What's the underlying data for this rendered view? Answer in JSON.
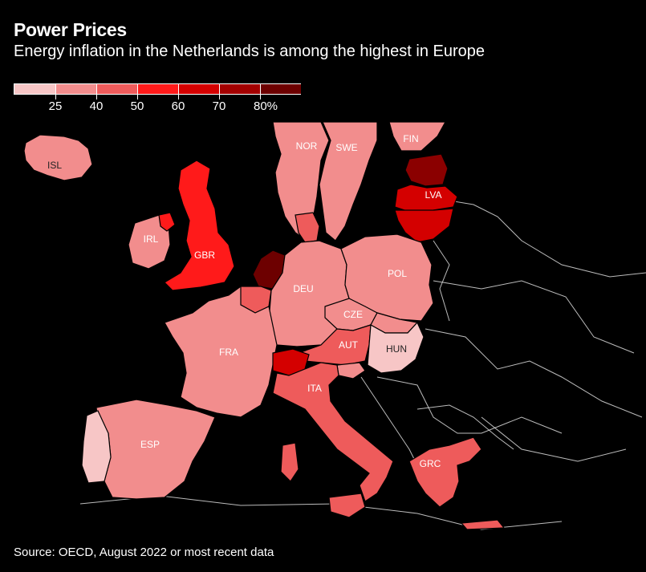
{
  "title": "Power Prices",
  "subtitle": "Energy inflation in the Netherlands is among the highest in Europe",
  "legend": {
    "labels": [
      "25",
      "40",
      "50",
      "60",
      "70",
      "80%"
    ],
    "colors": [
      "#f7c6c6",
      "#f28d8d",
      "#ee5b5b",
      "#ff1a1a",
      "#d40000",
      "#a30000",
      "#6d0000"
    ]
  },
  "countries": {
    "isl": {
      "label": "ISL",
      "color": "#f28d8d"
    },
    "nor": {
      "label": "NOR",
      "color": "#f28d8d"
    },
    "swe": {
      "label": "SWE",
      "color": "#f28d8d"
    },
    "fin": {
      "label": "FIN",
      "color": "#f28d8d"
    },
    "est": {
      "label": "",
      "color": "#8b0000"
    },
    "lva": {
      "label": "LVA",
      "color": "#d40000"
    },
    "ltu": {
      "label": "",
      "color": "#d40000"
    },
    "irl": {
      "label": "IRL",
      "color": "#f28d8d"
    },
    "gbr": {
      "label": "GBR",
      "color": "#ff1a1a"
    },
    "nld": {
      "label": "",
      "color": "#6d0000"
    },
    "bel": {
      "label": "",
      "color": "#ee5b5b"
    },
    "dnk": {
      "label": "",
      "color": "#ee5b5b"
    },
    "deu": {
      "label": "DEU",
      "color": "#f28d8d"
    },
    "pol": {
      "label": "POL",
      "color": "#f28d8d"
    },
    "cze": {
      "label": "CZE",
      "color": "#f28d8d"
    },
    "aut": {
      "label": "AUT",
      "color": "#ee5b5b"
    },
    "hun": {
      "label": "HUN",
      "color": "#f7c6c6"
    },
    "fra": {
      "label": "FRA",
      "color": "#f28d8d"
    },
    "che": {
      "label": "",
      "color": "#d40000"
    },
    "ita": {
      "label": "ITA",
      "color": "#ee5b5b"
    },
    "esp": {
      "label": "ESP",
      "color": "#f28d8d"
    },
    "prt": {
      "label": "",
      "color": "#f7c6c6"
    },
    "grc": {
      "label": "GRC",
      "color": "#ee5b5b"
    },
    "svn": {
      "label": "",
      "color": "#f28d8d"
    },
    "svk": {
      "label": "",
      "color": "#f28d8d"
    }
  },
  "source": "Source: OECD, August 2022 or most recent data"
}
